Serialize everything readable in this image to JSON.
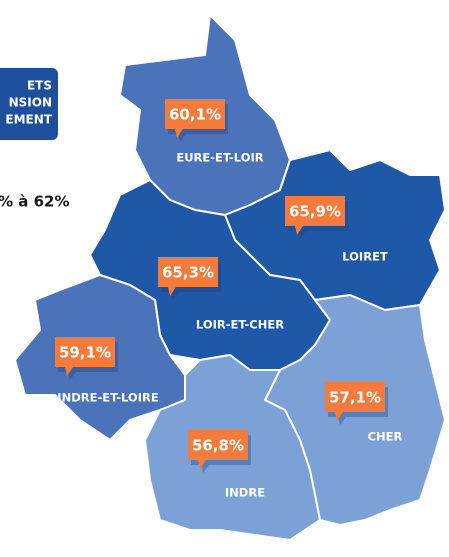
{
  "legend": {
    "lines": [
      "ETS",
      "NSION",
      "EMENT"
    ],
    "range_text": "% à 62%"
  },
  "regions": [
    {
      "name": "EURE-ET-LOIR",
      "value": 60.1,
      "value_label": "60,1%",
      "color": "#4b73b9"
    },
    {
      "name": "LOIRET",
      "value": 65.9,
      "value_label": "65,9%",
      "color": "#1e58a7"
    },
    {
      "name": "LOIR-ET-CHER",
      "value": 65.3,
      "value_label": "65,3%",
      "color": "#1e58a7"
    },
    {
      "name": "INDRE-ET-LOIRE",
      "value": 59.1,
      "value_label": "59,1%",
      "color": "#4b73b9"
    },
    {
      "name": "CHER",
      "value": 57.1,
      "value_label": "57,1%",
      "color": "#7ca1d6"
    },
    {
      "name": "INDRE",
      "value": 56.8,
      "value_label": "56,8%",
      "color": "#7ca1d6"
    }
  ]
}
